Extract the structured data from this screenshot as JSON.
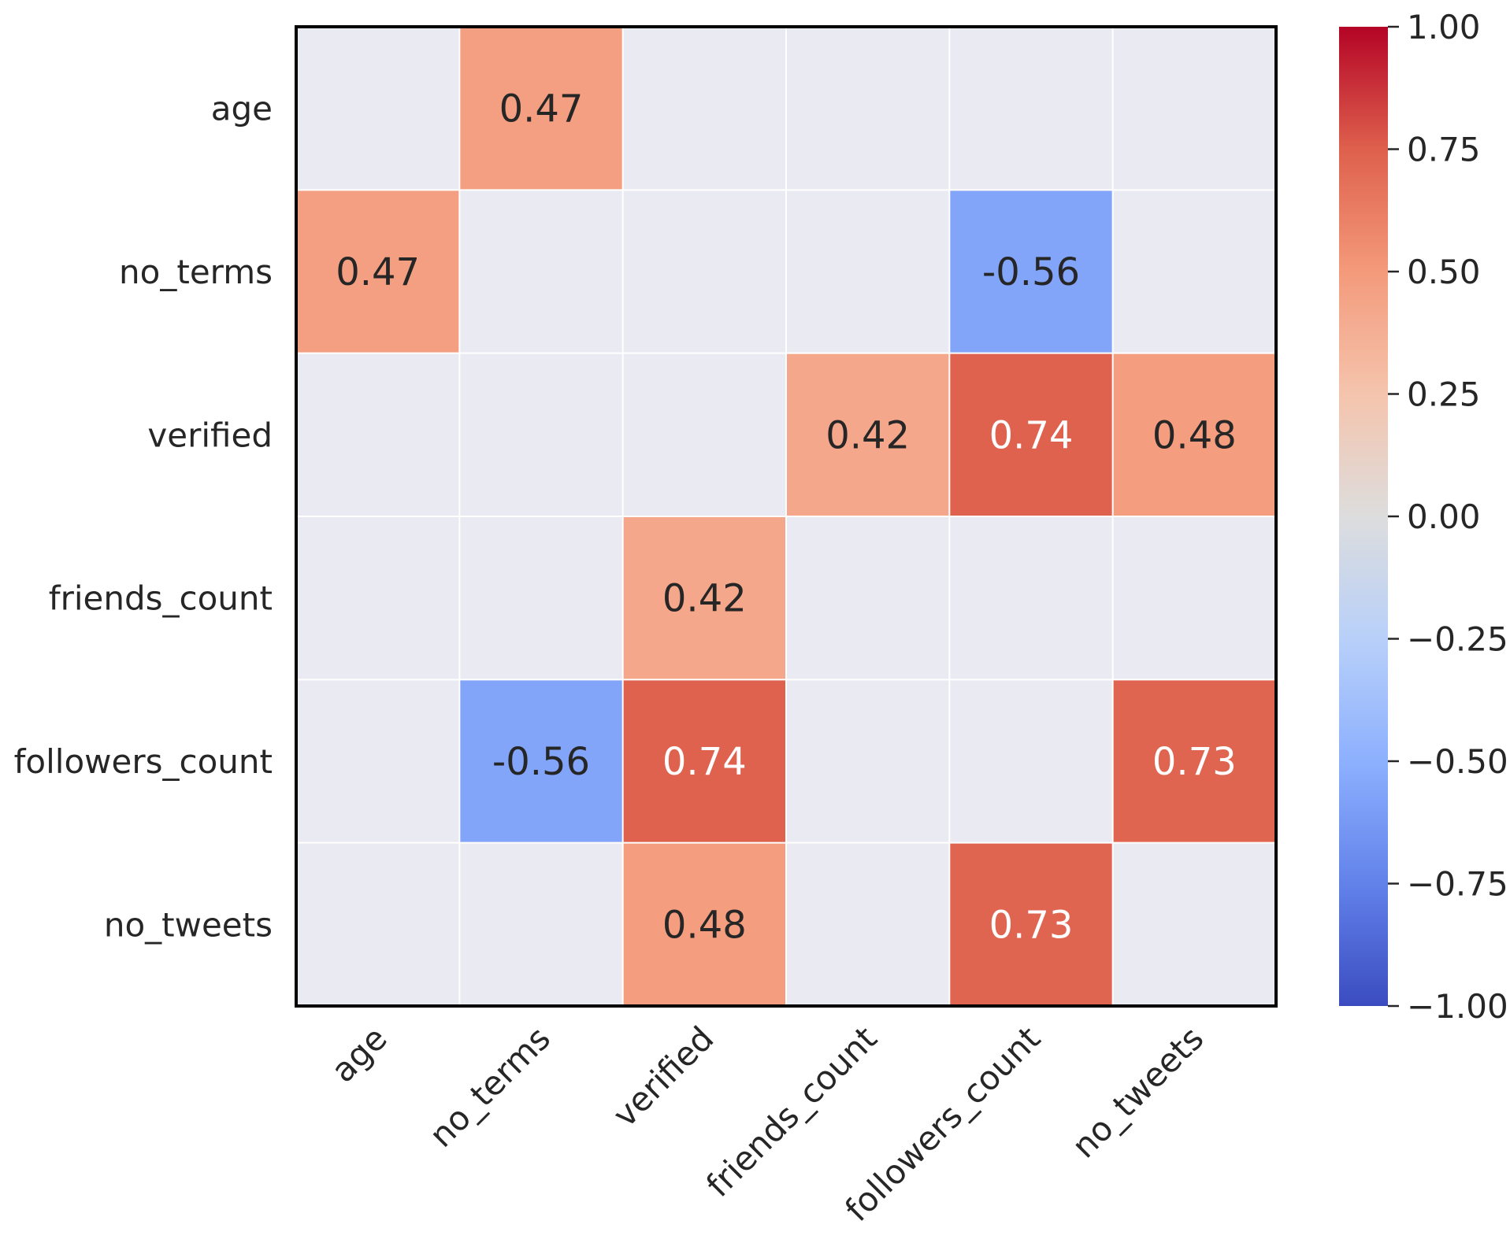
{
  "chart_data": {
    "type": "heatmap",
    "title": "",
    "xlabel": "",
    "ylabel": "",
    "rows": [
      "age",
      "no_terms",
      "verified",
      "friends_count",
      "followers_count",
      "no_tweets"
    ],
    "columns": [
      "age",
      "no_terms",
      "verified",
      "friends_count",
      "followers_count",
      "no_tweets"
    ],
    "values": [
      [
        null,
        0.47,
        null,
        null,
        null,
        null
      ],
      [
        0.47,
        null,
        null,
        null,
        -0.56,
        null
      ],
      [
        null,
        null,
        null,
        0.42,
        0.74,
        0.48
      ],
      [
        null,
        null,
        0.42,
        null,
        null,
        null
      ],
      [
        null,
        -0.56,
        0.74,
        null,
        null,
        0.73
      ],
      [
        null,
        null,
        0.48,
        null,
        0.73,
        null
      ]
    ],
    "cell_labels": [
      [
        "",
        "0.47",
        "",
        "",
        "",
        ""
      ],
      [
        "0.47",
        "",
        "",
        "",
        "-0.56",
        ""
      ],
      [
        "",
        "",
        "",
        "0.42",
        "0.74",
        "0.48"
      ],
      [
        "",
        "",
        "0.42",
        "",
        "",
        ""
      ],
      [
        "",
        "-0.56",
        "0.74",
        "",
        "",
        "0.73"
      ],
      [
        "",
        "",
        "0.48",
        "",
        "0.73",
        ""
      ]
    ],
    "colormap": "coolwarm",
    "vmin": -1.0,
    "vmax": 1.0,
    "masked_color": "#EAEAF2",
    "colorbar": {
      "ticks": [
        1.0,
        0.75,
        0.5,
        0.25,
        0.0,
        -0.25,
        -0.5,
        -0.75,
        -1.0
      ],
      "tick_labels": [
        "1.00",
        "0.75",
        "0.50",
        "0.25",
        "0.00",
        "−0.25",
        "−0.50",
        "−0.75",
        "−1.00"
      ]
    }
  }
}
